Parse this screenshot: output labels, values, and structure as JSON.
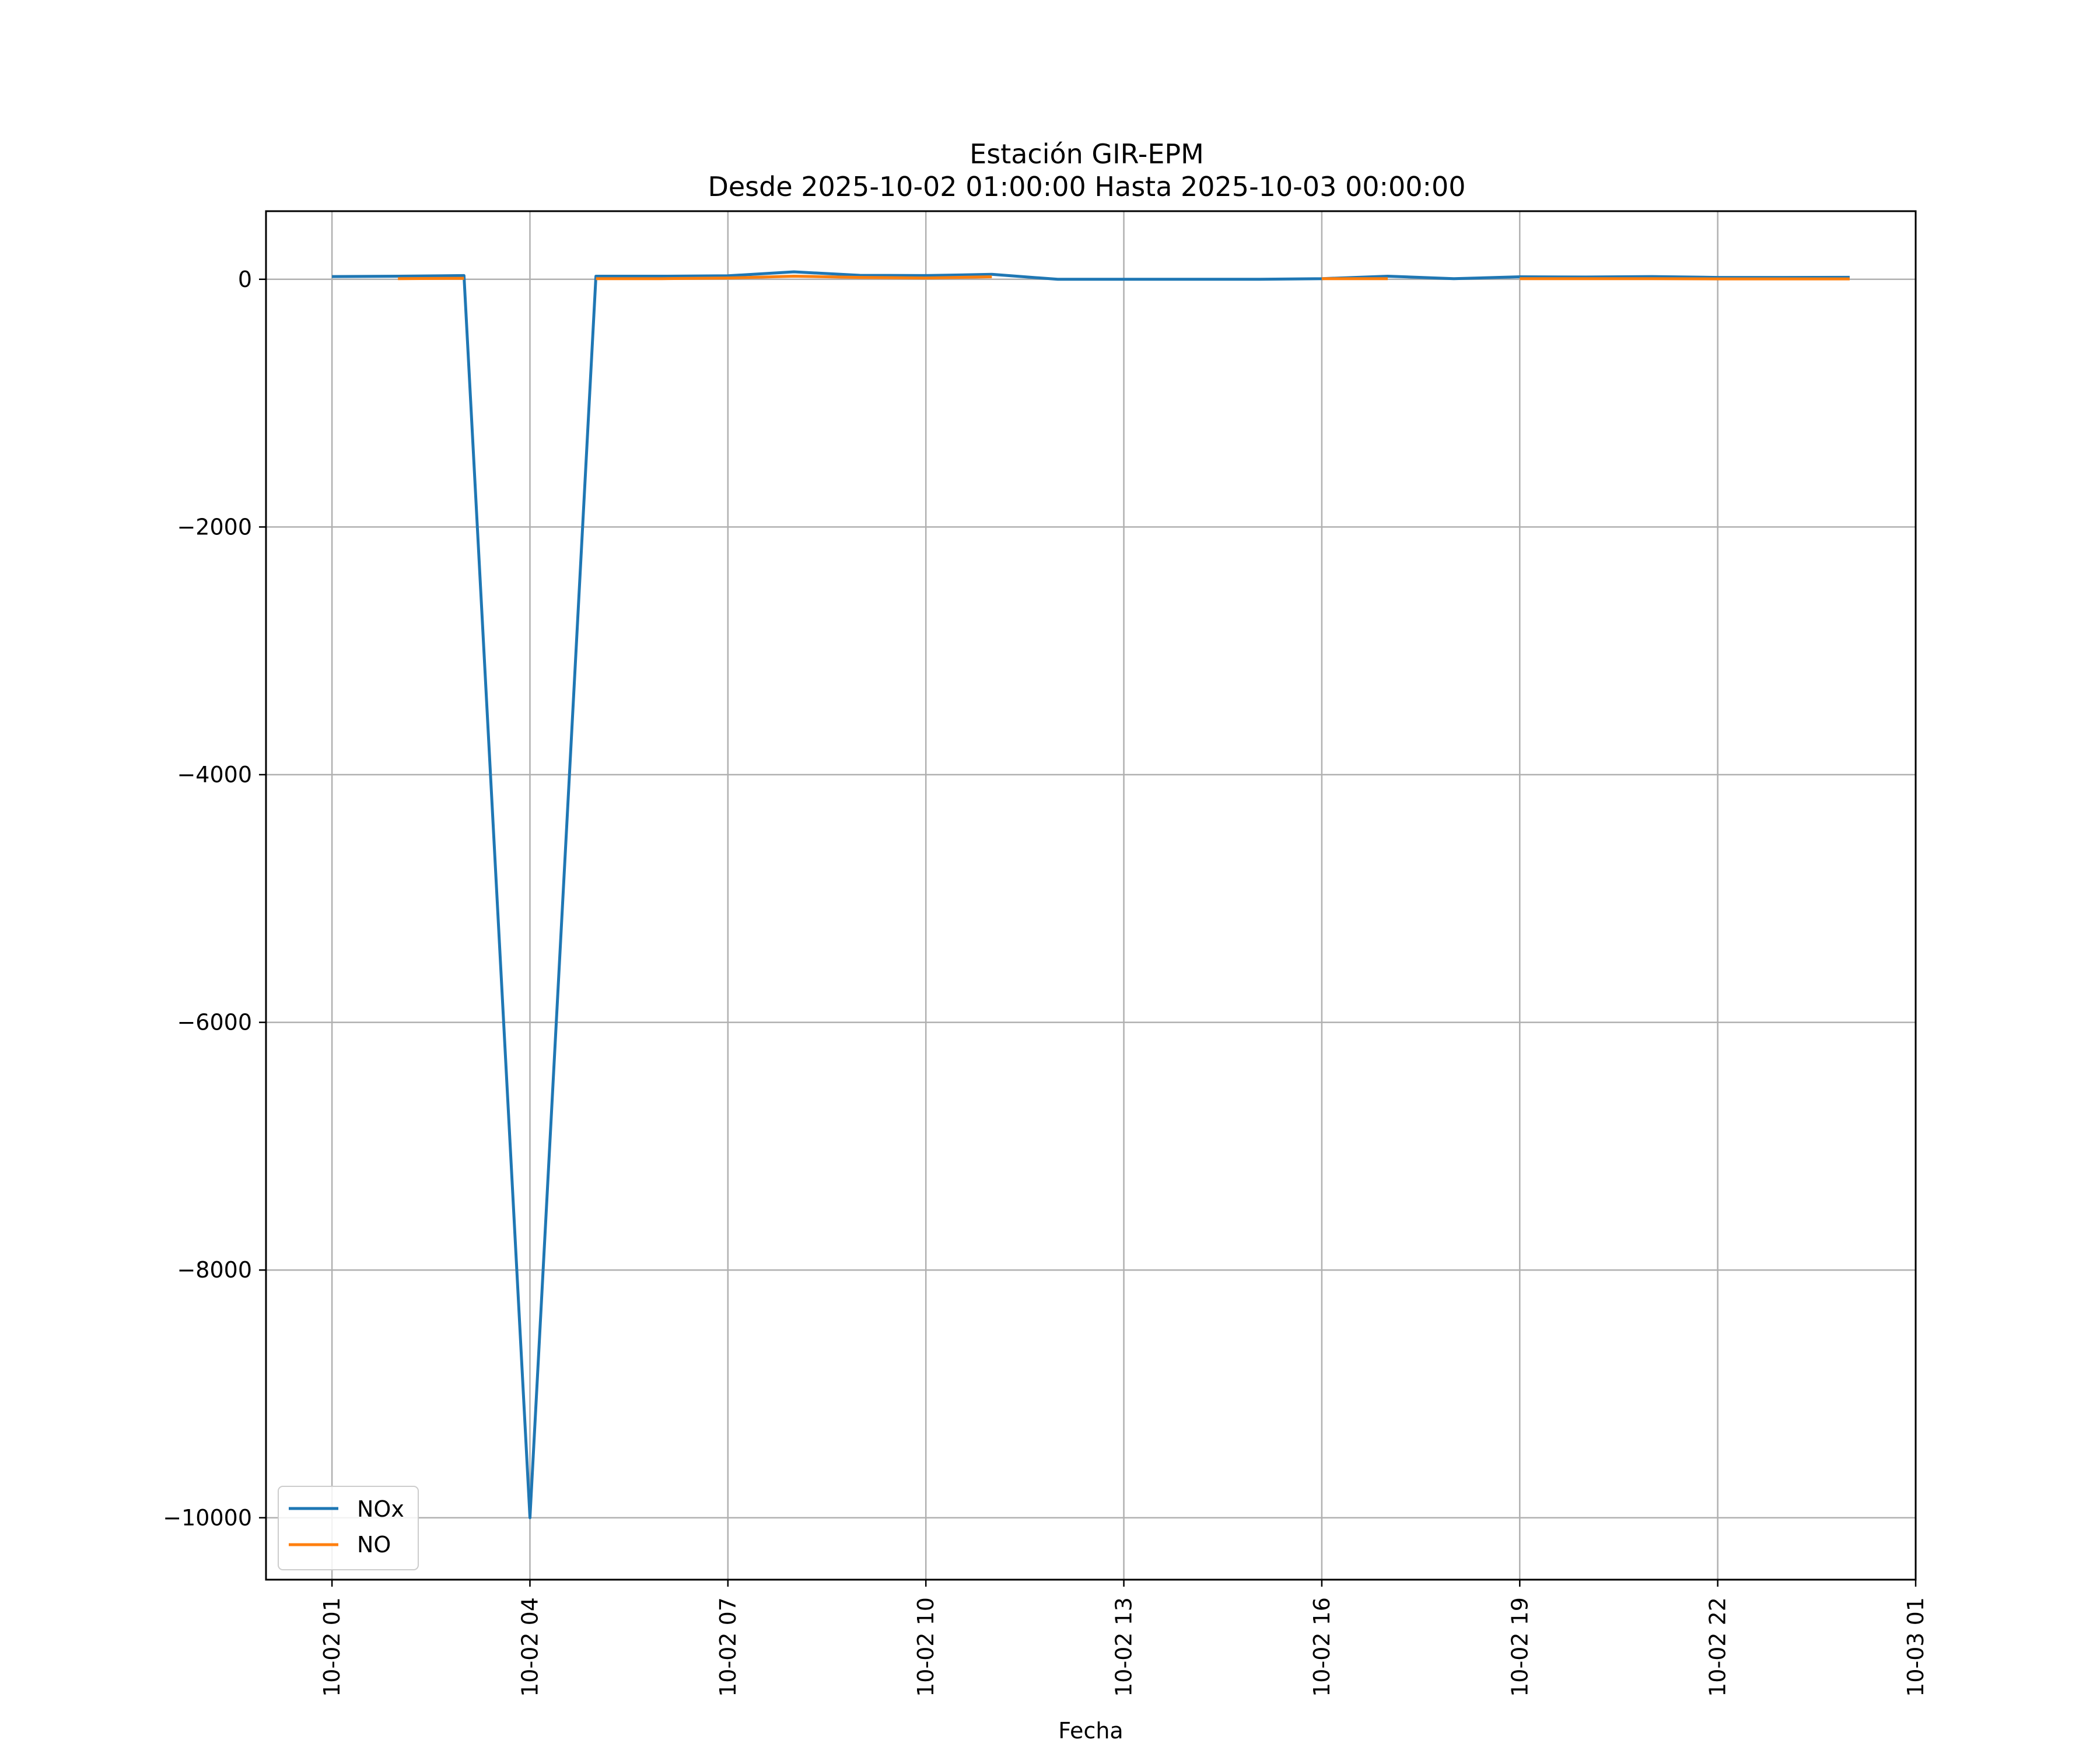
{
  "chart_data": {
    "type": "line",
    "title": "Estación GIR-EPM",
    "subtitle": "Desde 2025-10-02 01:00:00 Hasta 2025-10-03 00:00:00",
    "xlabel": "Fecha",
    "ylabel": "",
    "x_tick_labels": [
      "10-02 01",
      "10-02 04",
      "10-02 07",
      "10-02 10",
      "10-02 13",
      "10-02 16",
      "10-02 19",
      "10-02 22",
      "10-03 01"
    ],
    "y_tick_labels": [
      "0",
      "−2000",
      "−4000",
      "−6000",
      "−8000",
      "−10000"
    ],
    "y_ticks": [
      0,
      -2000,
      -4000,
      -6000,
      -8000,
      -10000
    ],
    "ylim": [
      -10500,
      550
    ],
    "xlim": [
      "2025-10-02 00:00",
      "2025-10-03 01:00"
    ],
    "grid": true,
    "legend_position": "lower-left",
    "series": [
      {
        "name": "NOx",
        "color": "#1f77b4",
        "points": [
          [
            "2025-10-02 01:00",
            22
          ],
          [
            "2025-10-02 02:00",
            25
          ],
          [
            "2025-10-02 03:00",
            30
          ],
          [
            "2025-10-02 04:00",
            -10000
          ],
          [
            "2025-10-02 05:00",
            25
          ],
          [
            "2025-10-02 06:00",
            25
          ],
          [
            "2025-10-02 07:00",
            28
          ],
          [
            "2025-10-02 08:00",
            60
          ],
          [
            "2025-10-02 09:00",
            32
          ],
          [
            "2025-10-02 10:00",
            30
          ],
          [
            "2025-10-02 11:00",
            40
          ],
          [
            "2025-10-02 12:00",
            0
          ],
          [
            "2025-10-02 13:00",
            0
          ],
          [
            "2025-10-02 14:00",
            0
          ],
          [
            "2025-10-02 15:00",
            0
          ],
          [
            "2025-10-02 16:00",
            5
          ],
          [
            "2025-10-02 17:00",
            25
          ],
          [
            "2025-10-02 18:00",
            5
          ],
          [
            "2025-10-02 19:00",
            20
          ],
          [
            "2025-10-02 20:00",
            18
          ],
          [
            "2025-10-02 21:00",
            22
          ],
          [
            "2025-10-02 22:00",
            15
          ],
          [
            "2025-10-02 23:00",
            15
          ],
          [
            "2025-10-03 00:00",
            16
          ]
        ]
      },
      {
        "name": "NO",
        "color": "#ff7f0e",
        "segments": [
          [
            [
              "2025-10-02 02:00",
              5
            ],
            [
              "2025-10-02 03:00",
              8
            ]
          ],
          [
            [
              "2025-10-02 05:00",
              5
            ],
            [
              "2025-10-02 06:00",
              5
            ],
            [
              "2025-10-02 07:00",
              10
            ],
            [
              "2025-10-02 08:00",
              25
            ],
            [
              "2025-10-02 09:00",
              15
            ],
            [
              "2025-10-02 10:00",
              10
            ],
            [
              "2025-10-02 11:00",
              20
            ]
          ],
          [
            [
              "2025-10-02 16:00",
              5
            ],
            [
              "2025-10-02 17:00",
              5
            ]
          ],
          [
            [
              "2025-10-02 19:00",
              5
            ],
            [
              "2025-10-02 20:00",
              5
            ],
            [
              "2025-10-02 21:00",
              5
            ],
            [
              "2025-10-02 22:00",
              3
            ],
            [
              "2025-10-02 23:00",
              3
            ],
            [
              "2025-10-03 00:00",
              3
            ]
          ]
        ]
      }
    ]
  }
}
